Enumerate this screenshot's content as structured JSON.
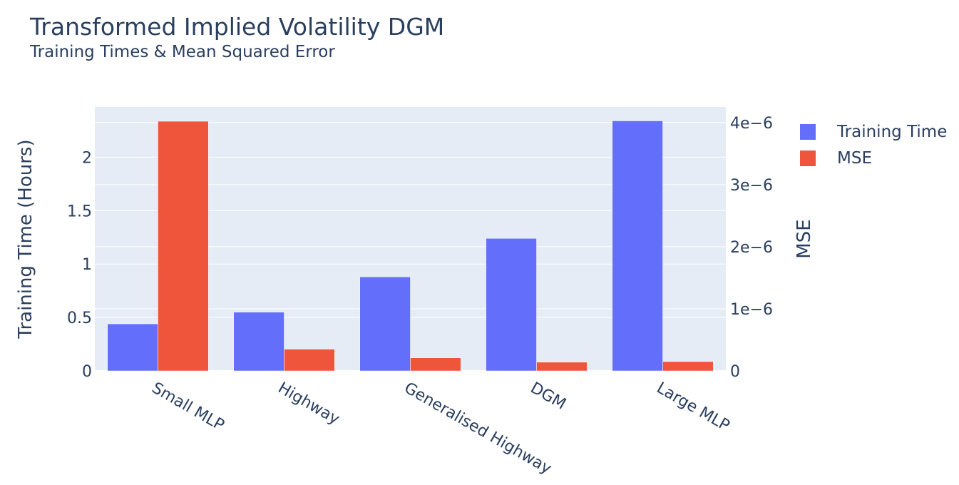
{
  "title": "Transformed Implied Volatility DGM",
  "subtitle": "Training Times & Mean Squared Error",
  "colors": {
    "training_time": "#636efa",
    "mse": "#ef553b",
    "plot_bg": "#e5ecf6",
    "grid": "#ffffff",
    "text": "#2a3f5f"
  },
  "legend": {
    "items": [
      {
        "label": "Training Time",
        "color": "#636efa"
      },
      {
        "label": "MSE",
        "color": "#ef553b"
      }
    ]
  },
  "chart_data": {
    "type": "bar",
    "categories": [
      "Small MLP",
      "Highway",
      "Generalised Highway",
      "DGM",
      "Large MLP"
    ],
    "series": [
      {
        "name": "Training Time",
        "axis": "left",
        "values": [
          0.44,
          0.55,
          0.88,
          1.24,
          2.34
        ]
      },
      {
        "name": "MSE",
        "axis": "right",
        "values": [
          4.02e-06,
          3.5e-07,
          2.1e-07,
          1.4e-07,
          1.5e-07
        ]
      }
    ],
    "ylabel": "Training Time (Hours)",
    "y2label": "MSE",
    "ylim": [
      0,
      2.47
    ],
    "y2lim": [
      0,
      4.25e-06
    ],
    "yticks": [
      0,
      0.5,
      1,
      1.5,
      2
    ],
    "ytick_labels": [
      "0",
      "0.5",
      "1",
      "1.5",
      "2"
    ],
    "y2ticks": [
      0,
      1e-06,
      2e-06,
      3e-06,
      4e-06
    ],
    "y2tick_labels": [
      "0",
      "1e−6",
      "2e−6",
      "3e−6",
      "4e−6"
    ],
    "grid": true,
    "legend_position": "top-right, outside plot"
  }
}
